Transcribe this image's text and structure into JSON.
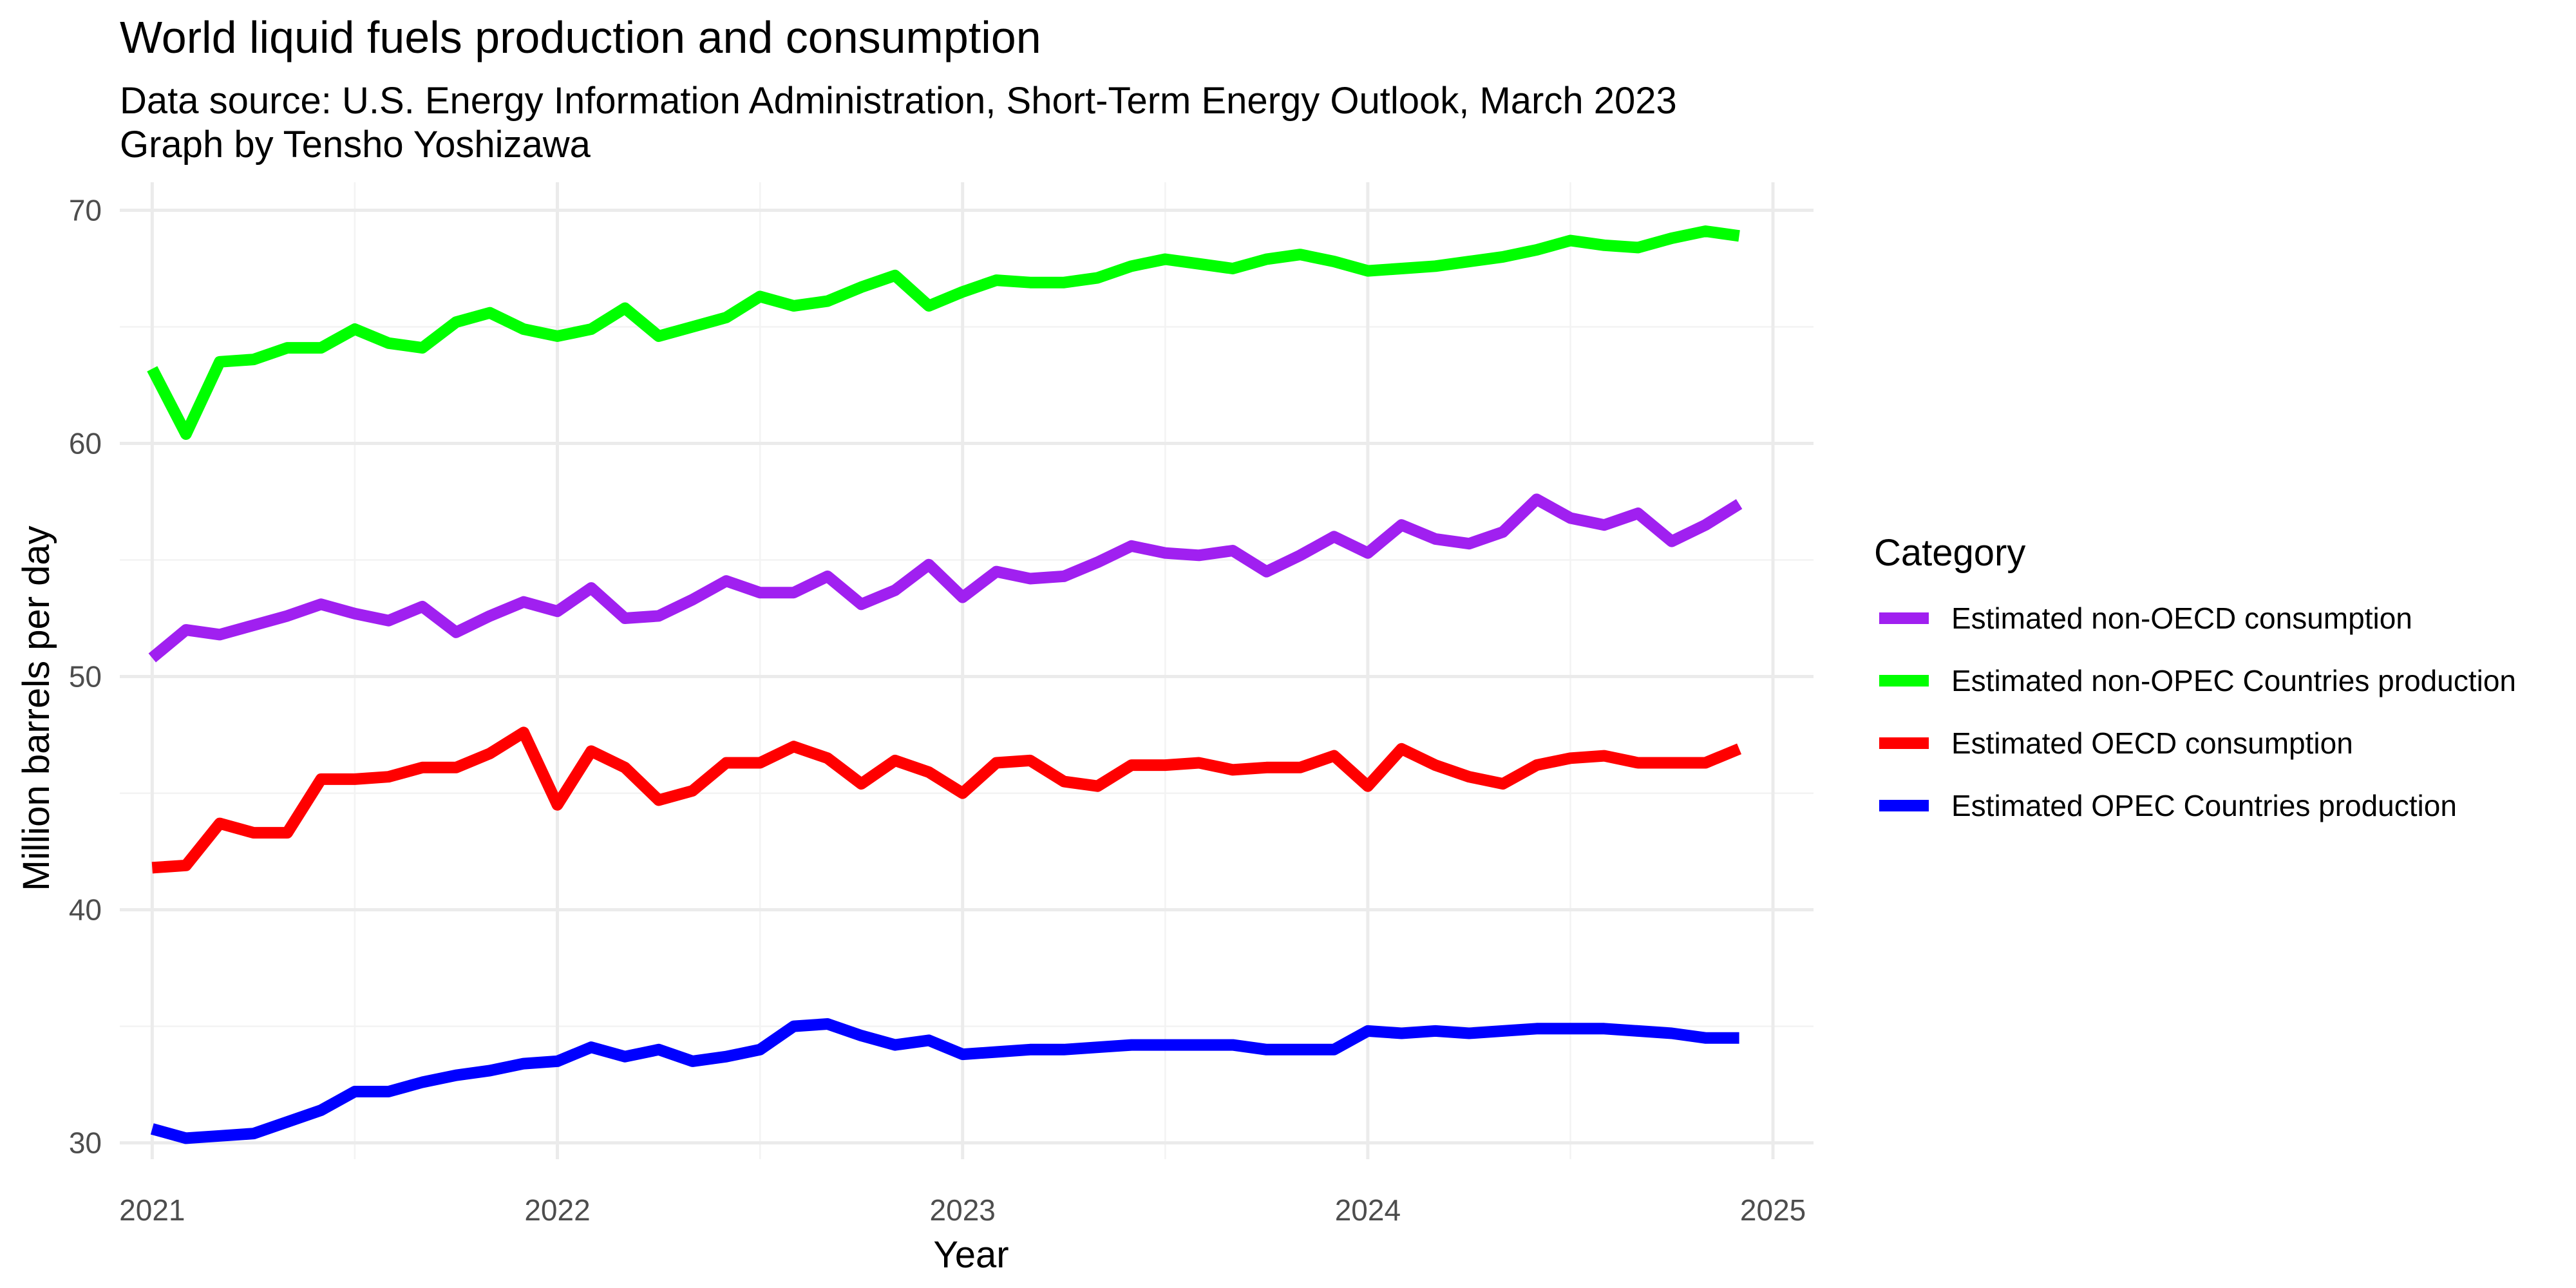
{
  "chart_data": {
    "type": "line",
    "title": "World liquid fuels production and consumption",
    "subtitle_lines": [
      "Data source: U.S. Energy Information Administration, Short-Term Energy Outlook, March 2023",
      "Graph by Tensho Yoshizawa"
    ],
    "xlabel": "Year",
    "ylabel": "Million barrels per day",
    "xlim": [
      2020.92,
      2025.1
    ],
    "ylim": [
      29.3,
      71.2
    ],
    "x_ticks": [
      2021,
      2022,
      2023,
      2024,
      2025
    ],
    "x_tick_labels": [
      "2021",
      "2022",
      "2023",
      "2024",
      "2025"
    ],
    "y_ticks": [
      30,
      40,
      50,
      60,
      70
    ],
    "y_tick_labels": [
      "30",
      "40",
      "50",
      "60",
      "70"
    ],
    "grid": true,
    "legend": {
      "title": "Category",
      "position": "right"
    },
    "x_start_year": 2021,
    "x_step_months": 1,
    "series": [
      {
        "name": "Estimated non-OECD consumption",
        "color": "#a020f0",
        "values": [
          50.8,
          52.0,
          51.8,
          52.2,
          52.6,
          53.1,
          52.7,
          52.4,
          53.0,
          51.9,
          52.6,
          53.2,
          52.8,
          53.8,
          52.5,
          52.6,
          53.3,
          54.1,
          53.6,
          53.6,
          54.3,
          53.1,
          53.7,
          54.8,
          53.4,
          54.5,
          54.2,
          54.3,
          54.9,
          55.6,
          55.3,
          55.2,
          55.4,
          54.5,
          55.2,
          56.0,
          55.3,
          56.5,
          55.9,
          55.7,
          56.2,
          57.6,
          56.8,
          56.5,
          57.0,
          55.8,
          56.5,
          57.4
        ]
      },
      {
        "name": "Estimated non-OPEC Countries production",
        "color": "#00ff00",
        "values": [
          63.2,
          60.4,
          63.5,
          63.6,
          64.1,
          64.1,
          64.9,
          64.3,
          64.1,
          65.2,
          65.6,
          64.9,
          64.6,
          64.9,
          65.8,
          64.6,
          65.0,
          65.4,
          66.3,
          65.9,
          66.1,
          66.7,
          67.2,
          65.9,
          66.5,
          67.0,
          66.9,
          66.9,
          67.1,
          67.6,
          67.9,
          67.7,
          67.5,
          67.9,
          68.1,
          67.8,
          67.4,
          67.5,
          67.6,
          67.8,
          68.0,
          68.3,
          68.7,
          68.5,
          68.4,
          68.8,
          69.1,
          68.9
        ]
      },
      {
        "name": "Estimated OECD consumption",
        "color": "#ff0000",
        "values": [
          41.8,
          41.9,
          43.7,
          43.3,
          43.3,
          45.6,
          45.6,
          45.7,
          46.1,
          46.1,
          46.7,
          47.6,
          44.5,
          46.8,
          46.1,
          44.7,
          45.1,
          46.3,
          46.3,
          47.0,
          46.5,
          45.4,
          46.4,
          45.9,
          45.0,
          46.3,
          46.4,
          45.5,
          45.3,
          46.2,
          46.2,
          46.3,
          46.0,
          46.1,
          46.1,
          46.6,
          45.3,
          46.9,
          46.2,
          45.7,
          45.4,
          46.2,
          46.5,
          46.6,
          46.3,
          46.3,
          46.3,
          46.9
        ]
      },
      {
        "name": "Estimated OPEC Countries production",
        "color": "#0000ff",
        "values": [
          30.6,
          30.2,
          30.3,
          30.4,
          30.9,
          31.4,
          32.2,
          32.2,
          32.6,
          32.9,
          33.1,
          33.4,
          33.5,
          34.1,
          33.7,
          34.0,
          33.5,
          33.7,
          34.0,
          35.0,
          35.1,
          34.6,
          34.2,
          34.4,
          33.8,
          33.9,
          34.0,
          34.0,
          34.1,
          34.2,
          34.2,
          34.2,
          34.2,
          34.0,
          34.0,
          34.0,
          34.8,
          34.7,
          34.8,
          34.7,
          34.8,
          34.9,
          34.9,
          34.9,
          34.8,
          34.7,
          34.5,
          34.5
        ]
      }
    ]
  }
}
